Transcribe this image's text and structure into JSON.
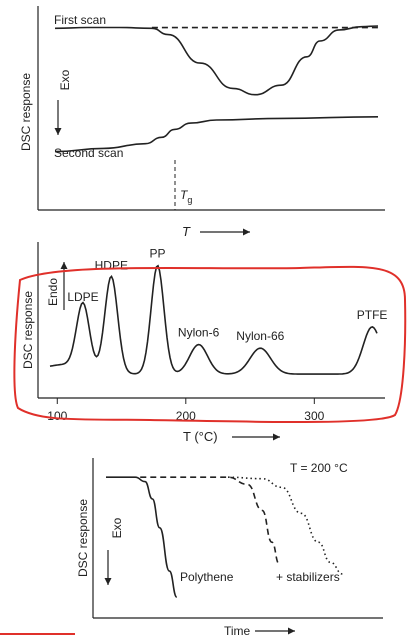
{
  "annotation_color": "#e0302a",
  "chart_data": [
    {
      "type": "line",
      "title": "",
      "ylabel": "DSC response",
      "xlabel": "T",
      "arrow_label": "Exo",
      "series": [
        {
          "name": "First scan",
          "style": "solid",
          "x": [
            0,
            0.1,
            0.2,
            0.3,
            0.35,
            0.45,
            0.55,
            0.62,
            0.7,
            0.78,
            0.82,
            0.88,
            0.95,
            1.0
          ],
          "y": [
            0.96,
            0.965,
            0.965,
            0.96,
            0.92,
            0.74,
            0.58,
            0.54,
            0.6,
            0.78,
            0.88,
            0.95,
            0.97,
            0.975
          ]
        },
        {
          "name": "baseline",
          "style": "dashed",
          "x": [
            0.3,
            1.0
          ],
          "y": [
            0.965,
            0.965
          ]
        },
        {
          "name": "Second scan",
          "style": "solid",
          "x": [
            0,
            0.15,
            0.28,
            0.33,
            0.37,
            0.42,
            0.5,
            0.7,
            1.0
          ],
          "y": [
            0.18,
            0.2,
            0.23,
            0.27,
            0.32,
            0.36,
            0.38,
            0.39,
            0.4
          ]
        }
      ],
      "annotations": [
        "T",
        "g"
      ],
      "tg_x": 0.37
    },
    {
      "type": "line",
      "title": "",
      "ylabel": "DSC response",
      "xlabel": "T (°C)",
      "arrow_label": "Endo",
      "x_ticks": [
        "100",
        "200",
        "300"
      ],
      "xlim": [
        85,
        355
      ],
      "peaks": [
        {
          "label": "LDPE",
          "x": 120,
          "height": 0.55
        },
        {
          "label": "HDPE",
          "x": 142,
          "height": 0.82
        },
        {
          "label": "PP",
          "x": 178,
          "height": 0.92
        },
        {
          "label": "Nylon-6",
          "x": 210,
          "height": 0.25
        },
        {
          "label": "Nylon-66",
          "x": 258,
          "height": 0.22
        },
        {
          "label": "PTFE",
          "x": 345,
          "height": 0.4
        }
      ]
    },
    {
      "type": "line",
      "title": "",
      "ylabel": "DSC response",
      "xlabel": "Time",
      "arrow_label": "Exo",
      "annotation": "T = 200 °C",
      "series": [
        {
          "name": "Polythene",
          "style": "solid",
          "x": [
            0,
            0.12,
            0.16,
            0.19,
            0.22,
            0.26,
            0.29
          ],
          "y": [
            0.95,
            0.95,
            0.92,
            0.8,
            0.6,
            0.3,
            0.12
          ]
        },
        {
          "name": "+ stabilizers",
          "style": "dashed",
          "x": [
            0.14,
            0.5,
            0.58,
            0.64,
            0.68,
            0.71
          ],
          "y": [
            0.95,
            0.95,
            0.9,
            0.72,
            0.5,
            0.35
          ]
        },
        {
          "name": "",
          "style": "dotted",
          "x": [
            0.5,
            0.64,
            0.72,
            0.8,
            0.87,
            0.92,
            0.97
          ],
          "y": [
            0.95,
            0.94,
            0.88,
            0.7,
            0.5,
            0.36,
            0.28
          ]
        }
      ],
      "legend": [
        "Polythene",
        "+ stabilizers"
      ]
    }
  ]
}
